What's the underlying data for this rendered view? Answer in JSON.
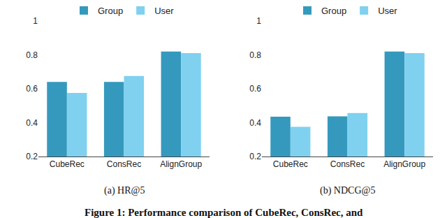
{
  "chart_data": [
    {
      "type": "bar",
      "title": "(a) HR@5",
      "categories": [
        "CubeRec",
        "ConsRec",
        "AlignGroup"
      ],
      "series": [
        {
          "name": "Group",
          "color": "#3599bd",
          "values": [
            0.64,
            0.64,
            0.82
          ]
        },
        {
          "name": "User",
          "color": "#7fd1ef",
          "values": [
            0.575,
            0.675,
            0.81
          ]
        }
      ],
      "ylim": [
        0.2,
        1
      ],
      "yticks": [
        0.2,
        0.4,
        0.6,
        0.8,
        1
      ],
      "grid": false,
      "legend": "top"
    },
    {
      "type": "bar",
      "title": "(b) NDCG@5",
      "categories": [
        "CubeRec",
        "ConsRec",
        "AlignGroup"
      ],
      "series": [
        {
          "name": "Group",
          "color": "#3599bd",
          "values": [
            0.435,
            0.437,
            0.82
          ]
        },
        {
          "name": "User",
          "color": "#7fd1ef",
          "values": [
            0.375,
            0.457,
            0.81
          ]
        }
      ],
      "ylim": [
        0.2,
        1
      ],
      "yticks": [
        0.2,
        0.4,
        0.6,
        0.8,
        1
      ],
      "grid": false,
      "legend": "top"
    }
  ],
  "caption": "Figure 1: Performance comparison of CubeRec, ConsRec, and"
}
